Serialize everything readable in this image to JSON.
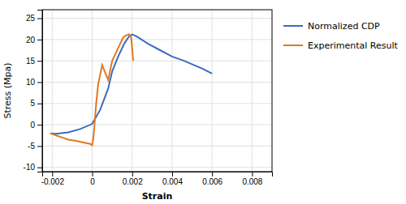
{
  "chart_data": {
    "type": "line",
    "xlabel": "Strain",
    "ylabel": "Stress (Mpa)",
    "xlim": [
      -0.0025,
      0.009
    ],
    "ylim": [
      -11,
      27
    ],
    "xticks": [
      -0.002,
      0,
      0.002,
      0.004,
      0.006,
      0.008
    ],
    "yticks": [
      -10,
      -5,
      0,
      5,
      10,
      15,
      20,
      25
    ],
    "grid": true,
    "series": [
      {
        "name": "Normalized CDP",
        "color": "#3d6bbf",
        "x": [
          -0.0021,
          -0.0018,
          -0.0012,
          -0.0006,
          0.0,
          0.0004,
          0.0008,
          0.001,
          0.0013,
          0.0016,
          0.00185,
          0.002,
          0.0022,
          0.0028,
          0.0034,
          0.004,
          0.0046,
          0.005,
          0.0055,
          0.006
        ],
        "values": [
          -2.0,
          -2.1,
          -1.8,
          -1.0,
          0.2,
          3.5,
          8.5,
          12.5,
          16.0,
          19.0,
          20.8,
          21.2,
          20.8,
          19.0,
          17.5,
          16.0,
          15.0,
          14.2,
          13.2,
          12.0
        ]
      },
      {
        "name": "Experimental Result",
        "color": "#e07820",
        "x": [
          -0.0021,
          -0.0018,
          -0.0015,
          -0.0012,
          -0.0008,
          -0.0004,
          -0.0001,
          0.0,
          5e-05,
          0.0001,
          0.00015,
          0.0002,
          0.0003,
          0.0005,
          0.0008,
          0.001,
          0.0012,
          0.0014,
          0.00155,
          0.0017,
          0.00185,
          0.00195,
          0.002,
          0.00205
        ],
        "values": [
          -2.0,
          -2.5,
          -3.0,
          -3.5,
          -3.8,
          -4.2,
          -4.5,
          -4.8,
          -3.5,
          -1.0,
          2.0,
          5.0,
          9.5,
          14.0,
          10.5,
          15.0,
          17.0,
          19.0,
          20.5,
          21.0,
          21.2,
          20.5,
          18.0,
          15.0
        ]
      }
    ]
  }
}
